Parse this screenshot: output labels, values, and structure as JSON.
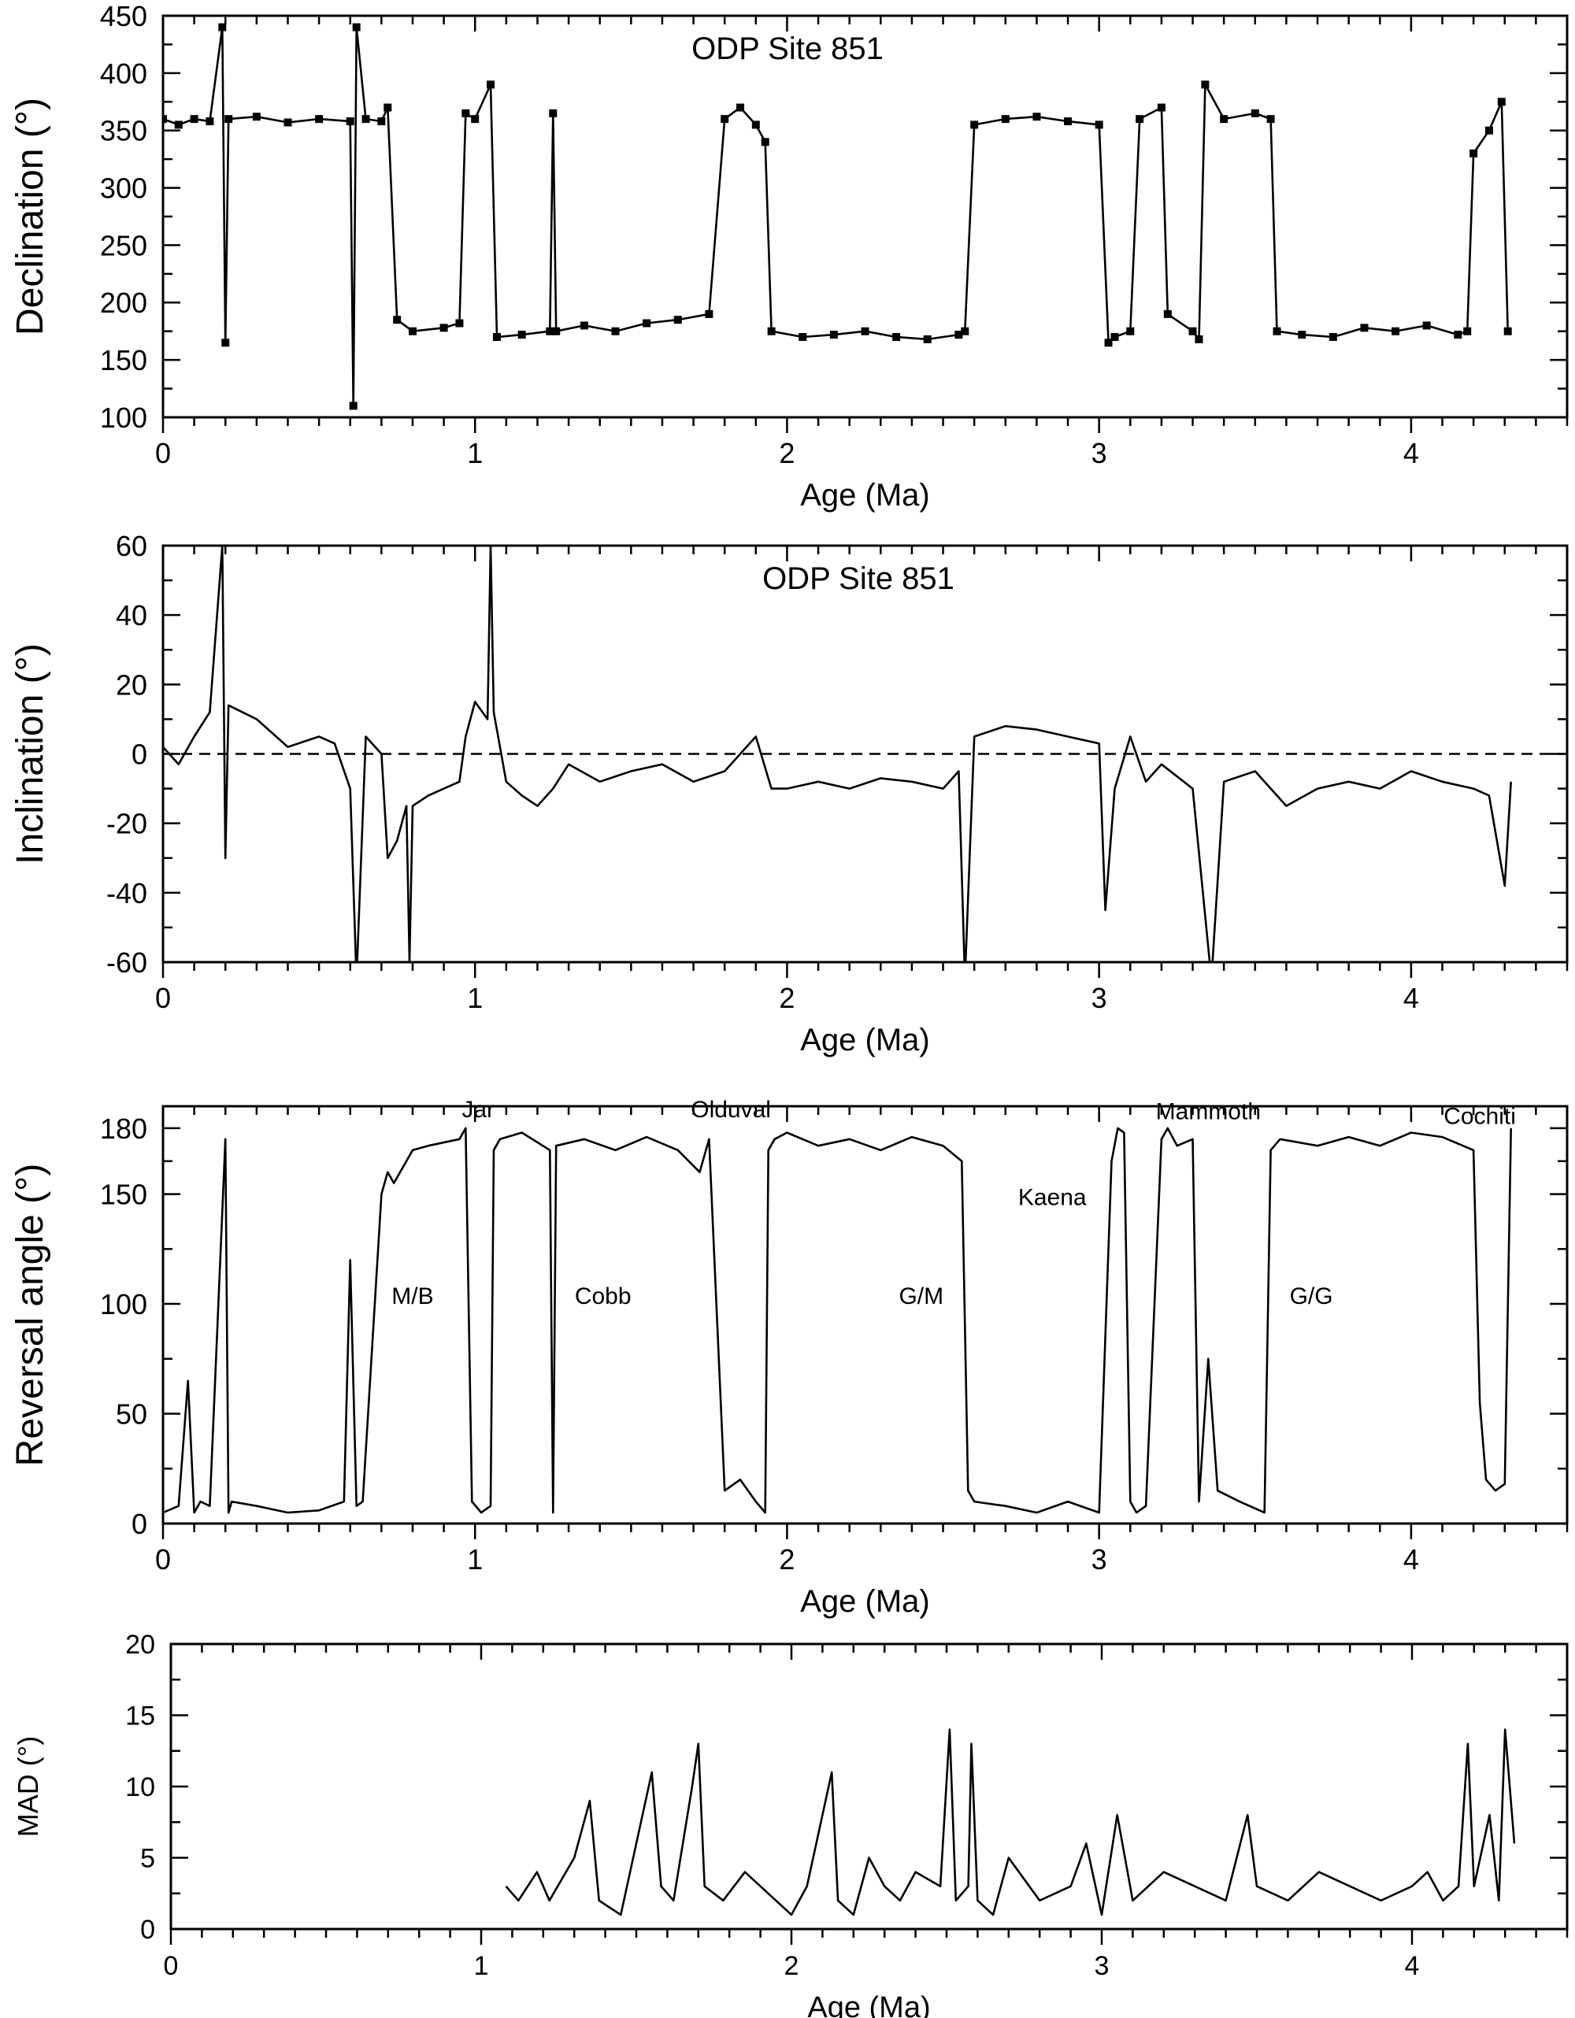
{
  "chart_data": [
    {
      "type": "line",
      "title": "ODP Site 851",
      "xlabel": "Age (Ma)",
      "ylabel": "Declination (°)",
      "xlim": [
        0,
        4.5
      ],
      "ylim": [
        100,
        450
      ],
      "xticks": [
        0,
        1,
        2,
        3,
        4
      ],
      "yticks": [
        100,
        150,
        200,
        250,
        300,
        350,
        400,
        450
      ],
      "markers": true,
      "grid": false,
      "series": [
        {
          "x": [
            0.0,
            0.05,
            0.1,
            0.15,
            0.19,
            0.2,
            0.21,
            0.3,
            0.4,
            0.5,
            0.6,
            0.61,
            0.62,
            0.65,
            0.7,
            0.72,
            0.75,
            0.8,
            0.9,
            0.95,
            0.97,
            1.0,
            1.05,
            1.07,
            1.15,
            1.24,
            1.25,
            1.26,
            1.35,
            1.45,
            1.55,
            1.65,
            1.75,
            1.8,
            1.85,
            1.9,
            1.93,
            1.95,
            2.05,
            2.15,
            2.25,
            2.35,
            2.45,
            2.55,
            2.57,
            2.6,
            2.7,
            2.8,
            2.9,
            3.0,
            3.03,
            3.05,
            3.1,
            3.13,
            3.2,
            3.22,
            3.3,
            3.32,
            3.34,
            3.4,
            3.5,
            3.55,
            3.57,
            3.65,
            3.75,
            3.85,
            3.95,
            4.05,
            4.15,
            4.18,
            4.2,
            4.25,
            4.29,
            4.31
          ],
          "values": [
            360,
            355,
            360,
            358,
            440,
            165,
            360,
            362,
            357,
            360,
            358,
            110,
            440,
            360,
            358,
            370,
            185,
            175,
            178,
            182,
            365,
            360,
            390,
            170,
            172,
            175,
            365,
            175,
            180,
            175,
            182,
            185,
            190,
            360,
            370,
            355,
            340,
            175,
            170,
            172,
            175,
            170,
            168,
            172,
            175,
            355,
            360,
            362,
            358,
            355,
            165,
            170,
            175,
            360,
            370,
            190,
            175,
            168,
            390,
            360,
            365,
            360,
            175,
            172,
            170,
            178,
            175,
            180,
            172,
            175,
            330,
            350,
            375,
            175
          ]
        }
      ]
    },
    {
      "type": "line",
      "title": "ODP Site 851",
      "xlabel": "Age (Ma)",
      "ylabel": "Inclination (°)",
      "xlim": [
        0,
        4.5
      ],
      "ylim": [
        -60,
        60
      ],
      "xticks": [
        0,
        1,
        2,
        3,
        4
      ],
      "yticks": [
        -60,
        -40,
        -20,
        0,
        20,
        40,
        60
      ],
      "reference_line": 0,
      "grid": false,
      "series": [
        {
          "x": [
            0.0,
            0.05,
            0.1,
            0.15,
            0.19,
            0.2,
            0.21,
            0.3,
            0.4,
            0.5,
            0.55,
            0.6,
            0.62,
            0.65,
            0.7,
            0.72,
            0.75,
            0.78,
            0.79,
            0.8,
            0.85,
            0.9,
            0.95,
            0.97,
            1.0,
            1.04,
            1.05,
            1.06,
            1.1,
            1.15,
            1.2,
            1.25,
            1.3,
            1.4,
            1.5,
            1.6,
            1.7,
            1.8,
            1.9,
            1.95,
            2.0,
            2.1,
            2.2,
            2.3,
            2.4,
            2.5,
            2.55,
            2.57,
            2.6,
            2.7,
            2.8,
            2.9,
            3.0,
            3.02,
            3.05,
            3.1,
            3.15,
            3.2,
            3.3,
            3.36,
            3.4,
            3.5,
            3.6,
            3.7,
            3.8,
            3.9,
            4.0,
            4.1,
            4.2,
            4.25,
            4.3,
            4.32
          ],
          "values": [
            2,
            -3,
            5,
            12,
            60,
            -30,
            14,
            10,
            2,
            5,
            3,
            -10,
            -65,
            5,
            0,
            -30,
            -25,
            -15,
            -60,
            -15,
            -12,
            -10,
            -8,
            5,
            15,
            10,
            60,
            12,
            -8,
            -12,
            -15,
            -10,
            -3,
            -8,
            -5,
            -3,
            -8,
            -5,
            5,
            -10,
            -10,
            -8,
            -10,
            -7,
            -8,
            -10,
            -5,
            -65,
            5,
            8,
            7,
            5,
            3,
            -45,
            -10,
            5,
            -8,
            -3,
            -10,
            -65,
            -8,
            -5,
            -15,
            -10,
            -8,
            -10,
            -5,
            -8,
            -10,
            -12,
            -38,
            -8
          ]
        }
      ]
    },
    {
      "type": "line",
      "title": "",
      "xlabel": "Age (Ma)",
      "ylabel": "Reversal angle (°)",
      "xlim": [
        0,
        4.5
      ],
      "ylim": [
        0,
        190
      ],
      "xticks": [
        0,
        1,
        2,
        3,
        4
      ],
      "yticks": [
        0,
        50,
        100,
        150,
        180
      ],
      "grid": false,
      "annotations": [
        {
          "text": "Jar",
          "x": 1.01,
          "y": 185
        },
        {
          "text": "Olduval",
          "x": 1.82,
          "y": 185
        },
        {
          "text": "Mammoth",
          "x": 3.35,
          "y": 184
        },
        {
          "text": "Cochiti",
          "x": 4.22,
          "y": 182
        },
        {
          "text": "Kaena",
          "x": 2.85,
          "y": 145
        },
        {
          "text": "M/B",
          "x": 0.8,
          "y": 100
        },
        {
          "text": "Cobb",
          "x": 1.41,
          "y": 100
        },
        {
          "text": "G/M",
          "x": 2.43,
          "y": 100
        },
        {
          "text": "G/G",
          "x": 3.68,
          "y": 100
        }
      ],
      "series": [
        {
          "x": [
            0.0,
            0.05,
            0.08,
            0.1,
            0.12,
            0.15,
            0.2,
            0.21,
            0.22,
            0.3,
            0.4,
            0.5,
            0.58,
            0.6,
            0.62,
            0.64,
            0.7,
            0.72,
            0.74,
            0.78,
            0.8,
            0.85,
            0.95,
            0.97,
            0.99,
            1.02,
            1.05,
            1.06,
            1.08,
            1.15,
            1.24,
            1.25,
            1.26,
            1.35,
            1.45,
            1.55,
            1.65,
            1.72,
            1.75,
            1.8,
            1.85,
            1.9,
            1.93,
            1.94,
            1.96,
            2.0,
            2.1,
            2.2,
            2.3,
            2.4,
            2.5,
            2.56,
            2.58,
            2.6,
            2.7,
            2.8,
            2.9,
            3.0,
            3.04,
            3.06,
            3.08,
            3.1,
            3.12,
            3.15,
            3.2,
            3.22,
            3.25,
            3.3,
            3.32,
            3.35,
            3.38,
            3.45,
            3.53,
            3.55,
            3.58,
            3.7,
            3.8,
            3.9,
            4.0,
            4.1,
            4.2,
            4.22,
            4.24,
            4.27,
            4.3,
            4.32
          ],
          "values": [
            5,
            8,
            65,
            5,
            10,
            8,
            175,
            5,
            10,
            8,
            5,
            6,
            10,
            120,
            8,
            10,
            150,
            160,
            155,
            165,
            170,
            172,
            175,
            180,
            10,
            5,
            8,
            170,
            175,
            178,
            170,
            5,
            172,
            175,
            170,
            176,
            170,
            160,
            175,
            15,
            20,
            10,
            5,
            170,
            175,
            178,
            172,
            175,
            170,
            176,
            172,
            165,
            15,
            10,
            8,
            5,
            10,
            5,
            165,
            180,
            178,
            10,
            5,
            8,
            175,
            180,
            172,
            175,
            10,
            75,
            15,
            10,
            5,
            170,
            175,
            172,
            176,
            172,
            178,
            176,
            170,
            55,
            20,
            15,
            18,
            180
          ]
        }
      ]
    },
    {
      "type": "line",
      "title": "",
      "xlabel": "Age (Ma)",
      "ylabel": "MAD (°)",
      "xlim": [
        0,
        4.5
      ],
      "ylim": [
        0,
        20
      ],
      "xticks": [
        0,
        1,
        2,
        3,
        4
      ],
      "yticks": [
        0,
        5,
        10,
        15,
        20
      ],
      "grid": false,
      "series": [
        {
          "x": [
            1.08,
            1.12,
            1.18,
            1.22,
            1.3,
            1.35,
            1.38,
            1.45,
            1.5,
            1.55,
            1.58,
            1.62,
            1.68,
            1.7,
            1.72,
            1.78,
            1.85,
            1.95,
            2.0,
            2.05,
            2.13,
            2.15,
            2.2,
            2.25,
            2.3,
            2.35,
            2.4,
            2.48,
            2.51,
            2.53,
            2.57,
            2.58,
            2.6,
            2.65,
            2.7,
            2.8,
            2.9,
            2.95,
            3.0,
            3.05,
            3.1,
            3.2,
            3.3,
            3.4,
            3.47,
            3.5,
            3.6,
            3.7,
            3.8,
            3.9,
            4.0,
            4.05,
            4.1,
            4.15,
            4.18,
            4.2,
            4.25,
            4.28,
            4.3,
            4.33
          ],
          "values": [
            3,
            2,
            4,
            2,
            5,
            9,
            2,
            1,
            6,
            11,
            3,
            2,
            10,
            13,
            3,
            2,
            4,
            2,
            1,
            3,
            11,
            2,
            1,
            5,
            3,
            2,
            4,
            3,
            14,
            2,
            3,
            13,
            2,
            1,
            5,
            2,
            3,
            6,
            1,
            8,
            2,
            4,
            3,
            2,
            8,
            3,
            2,
            4,
            3,
            2,
            3,
            4,
            2,
            3,
            13,
            3,
            8,
            2,
            14,
            6
          ]
        }
      ]
    }
  ]
}
